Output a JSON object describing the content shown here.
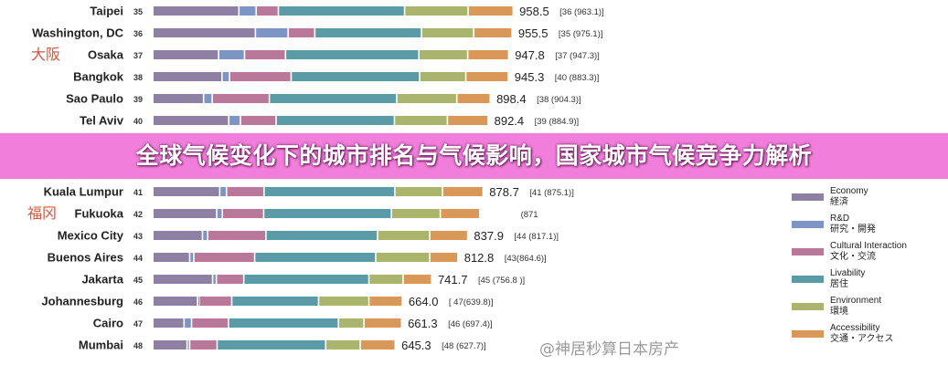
{
  "chart_data": {
    "type": "bar",
    "orientation": "horizontal",
    "stacked": true,
    "categories": [
      "Taipei",
      "Washington, DC",
      "Osaka",
      "Bangkok",
      "Sao Paulo",
      "Tel Aviv",
      "Kuala Lumpur",
      "Fukuoka",
      "Mexico City",
      "Buenos Aires",
      "Jakarta",
      "Johannesburg",
      "Cairo",
      "Mumbai"
    ],
    "ranks": [
      "35",
      "36",
      "37",
      "38",
      "39",
      "40",
      "41",
      "42",
      "43",
      "44",
      "45",
      "46",
      "47",
      "48"
    ],
    "scores": [
      "958.5",
      "955.5",
      "947.8",
      "945.3",
      "898.4",
      "892.4",
      "878.7",
      null,
      "837.9",
      "812.8",
      "741.7",
      "664.0",
      "661.3",
      "645.3"
    ],
    "previous": [
      "[36 (963.1)]",
      "[35 (975.1)]",
      "[37 (947.3)]",
      "[40 (883.3)]",
      "[38 (904.3)]",
      "[39 (884.9)]",
      "[41 (875.1)]",
      "(871",
      "[44 (817.1)]",
      "[43(864.6)]",
      "[45 (756.8 )]",
      "[ 47(639.8)]",
      "[46 (697.4)]",
      "[48 (627.7)]"
    ],
    "series": [
      {
        "name": "Economy",
        "name_ja": "経済",
        "color": "#8e80a2",
        "values": [
          229,
          273,
          175,
          184,
          135,
          202,
          178,
          170,
          132,
          98,
          159,
          119,
          83,
          91
        ]
      },
      {
        "name": "R&D",
        "name_ja": "研究・開発",
        "color": "#7d95c4",
        "values": [
          46,
          87,
          69,
          20,
          23,
          31,
          18,
          15,
          14,
          11,
          10,
          4,
          20,
          7
        ]
      },
      {
        "name": "Cultural Interaction",
        "name_ja": "文化・交流",
        "color": "#b97799",
        "values": [
          59,
          71,
          109,
          164,
          152,
          95,
          100,
          110,
          155,
          162,
          73,
          87,
          98,
          73
        ]
      },
      {
        "name": "Livability",
        "name_ja": "居住",
        "color": "#5b9ba7",
        "values": [
          336,
          284,
          355,
          342,
          339,
          315,
          348,
          340,
          297,
          322,
          333,
          231,
          293,
          289
        ]
      },
      {
        "name": "Environment",
        "name_ja": "環境",
        "color": "#abb46d",
        "values": [
          169,
          139,
          130,
          123,
          160,
          141,
          127,
          130,
          139,
          144,
          91,
          134,
          68,
          92
        ]
      },
      {
        "name": "Accessibility",
        "name_ja": "交通・アクセス",
        "color": "#d99758",
        "values": [
          120,
          102,
          109,
          113,
          89,
          108,
          108,
          105,
          101,
          75,
          76,
          89,
          100,
          93
        ]
      }
    ],
    "legend": "right",
    "grid": false
  },
  "annotations": {
    "osaka": "大阪",
    "fukuoka": "福冈"
  },
  "banner": {
    "title": "全球气候变化下的城市排名与气候影响，国家城市气候竞争力解析",
    "color": "#ee70d6"
  },
  "watermark": "@神居秒算日本房产"
}
